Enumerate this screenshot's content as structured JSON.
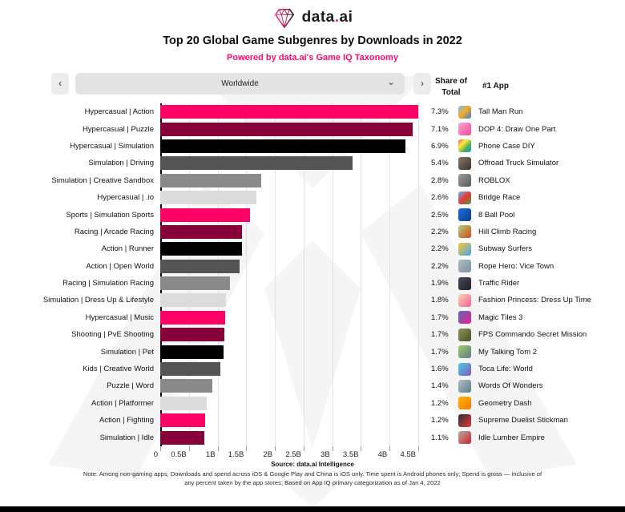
{
  "brand": {
    "name_pre": "data",
    "dot": ".",
    "name_post": "ai"
  },
  "header": {
    "title": "Top 20 Global Game Subgenres by Downloads in 2022",
    "subtitle": "Powered by data.ai's Game IQ Taxonomy"
  },
  "controls": {
    "prev_label": "‹",
    "next_label": "›",
    "region_selector": {
      "value": "Worldwide",
      "chevron": "⌄"
    }
  },
  "columns": {
    "share_header_line1": "Share of",
    "share_header_line2": "Total",
    "app_header": "#1 App"
  },
  "chart_data": {
    "type": "bar",
    "orientation": "horizontal",
    "title": "Top 20 Global Game Subgenres by Downloads in 2022",
    "x_axis_label_units": "downloads",
    "xlim_billions": [
      0,
      4.5
    ],
    "x_ticks": [
      "0",
      "0.5B",
      "1B",
      "1.5B",
      "2B",
      "2.5B",
      "3B",
      "3.5B",
      "4B",
      "4.5B"
    ],
    "grid": true,
    "bar_color_cycle": [
      "#FF0066",
      "#870038",
      "#000000",
      "#545454",
      "#8A8A8A",
      "#DBDBDB"
    ],
    "rows": [
      {
        "subgenre": "Hypercasual | Action",
        "downloads_billions": 4.5,
        "share_of_total": "7.3%",
        "top_app": "Tall Man Run",
        "icon_colors": [
          "#7ec3f7",
          "#f6a623",
          "#2f7fd1"
        ]
      },
      {
        "subgenre": "Hypercasual | Puzzle",
        "downloads_billions": 4.4,
        "share_of_total": "7.1%",
        "top_app": "DOP 4: Draw One Part",
        "icon_colors": [
          "#f9a8d4",
          "#ec4899"
        ]
      },
      {
        "subgenre": "Hypercasual | Simulation",
        "downloads_billions": 4.28,
        "share_of_total": "6.9%",
        "top_app": "Phone Case DIY",
        "icon_colors": [
          "#ff5252",
          "#ffeb3b",
          "#4caf50",
          "#2196f3"
        ]
      },
      {
        "subgenre": "Simulation | Driving",
        "downloads_billions": 3.35,
        "share_of_total": "5.4%",
        "top_app": "Offroad Truck Simulator",
        "icon_colors": [
          "#8a7a66",
          "#3a332c"
        ]
      },
      {
        "subgenre": "Simulation | Creative Sandbox",
        "downloads_billions": 1.76,
        "share_of_total": "2.8%",
        "top_app": "ROBLOX",
        "icon_colors": [
          "#9e9e9e",
          "#5a5a5a"
        ]
      },
      {
        "subgenre": "Hypercasual | .io",
        "downloads_billions": 1.68,
        "share_of_total": "2.6%",
        "top_app": "Bridge Race",
        "icon_colors": [
          "#64b5f6",
          "#e53935",
          "#43a047"
        ]
      },
      {
        "subgenre": "Sports | Simulation Sports",
        "downloads_billions": 1.57,
        "share_of_total": "2.5%",
        "top_app": "8 Ball Pool",
        "icon_colors": [
          "#1e6fd9",
          "#0d3b8c"
        ]
      },
      {
        "subgenre": "Racing | Arcade Racing",
        "downloads_billions": 1.43,
        "share_of_total": "2.2%",
        "top_app": "Hill Climb Racing",
        "icon_colors": [
          "#aed581",
          "#d84315"
        ]
      },
      {
        "subgenre": "Action | Runner",
        "downloads_billions": 1.43,
        "share_of_total": "2.2%",
        "top_app": "Subway Surfers",
        "icon_colors": [
          "#ffca28",
          "#42a5f5"
        ]
      },
      {
        "subgenre": "Action | Open World",
        "downloads_billions": 1.39,
        "share_of_total": "2.2%",
        "top_app": "Rope Hero: Vice Town",
        "icon_colors": [
          "#b0bec5",
          "#78909c"
        ]
      },
      {
        "subgenre": "Racing | Simulation Racing",
        "downloads_billions": 1.22,
        "share_of_total": "1.9%",
        "top_app": "Traffic Rider",
        "icon_colors": [
          "#4a4a5a",
          "#1f1f2b"
        ]
      },
      {
        "subgenre": "Simulation | Dress Up & Lifestyle",
        "downloads_billions": 1.15,
        "share_of_total": "1.8%",
        "top_app": "Fashion Princess: Dress Up Time",
        "icon_colors": [
          "#ffd3b6",
          "#f06292"
        ]
      },
      {
        "subgenre": "Hypercasual | Music",
        "downloads_billions": 1.13,
        "share_of_total": "1.7%",
        "top_app": "Magic Tiles 3",
        "icon_colors": [
          "#5c6bc0",
          "#e91e8c"
        ]
      },
      {
        "subgenre": "Shooting | PvE Shooting",
        "downloads_billions": 1.12,
        "share_of_total": "1.7%",
        "top_app": "FPS Commando Secret Mission",
        "icon_colors": [
          "#8d9463",
          "#4b5320"
        ]
      },
      {
        "subgenre": "Simulation | Pet",
        "downloads_billions": 1.1,
        "share_of_total": "1.7%",
        "top_app": "My Talking Tom 2",
        "icon_colors": [
          "#9ccc65",
          "#607d8b"
        ]
      },
      {
        "subgenre": "Kids | Creative World",
        "downloads_billions": 1.05,
        "share_of_total": "1.6%",
        "top_app": "Toca Life: World",
        "icon_colors": [
          "#4dd0e1",
          "#7e57c2"
        ]
      },
      {
        "subgenre": "Puzzle | Word",
        "downloads_billions": 0.91,
        "share_of_total": "1.4%",
        "top_app": "Words Of Wonders",
        "icon_colors": [
          "#b0bec5",
          "#607d8b"
        ]
      },
      {
        "subgenre": "Action | Platformer",
        "downloads_billions": 0.81,
        "share_of_total": "1.2%",
        "top_app": "Geometry Dash",
        "icon_colors": [
          "#ffb300",
          "#f57c00"
        ]
      },
      {
        "subgenre": "Action | Fighting",
        "downloads_billions": 0.78,
        "share_of_total": "1.2%",
        "top_app": "Supreme Duelist Stickman",
        "icon_colors": [
          "#263238",
          "#e53935"
        ]
      },
      {
        "subgenre": "Simulation | Idle",
        "downloads_billions": 0.77,
        "share_of_total": "1.1%",
        "top_app": "Idle Lumber Empire",
        "icon_colors": [
          "#bcaaa4",
          "#c62828"
        ]
      }
    ]
  },
  "footer": {
    "source": "Source: data.ai Intelligence",
    "note_line1": "Note: Among non-gaming apps; Downloads and spend across iOS & Google Play and China is iOS only. Time spent is Android phones only; Spend is gross — inclusive of",
    "note_line2": "any percent taken by the app stores; Based on App IQ primary categorization as of Jan 4, 2022"
  }
}
